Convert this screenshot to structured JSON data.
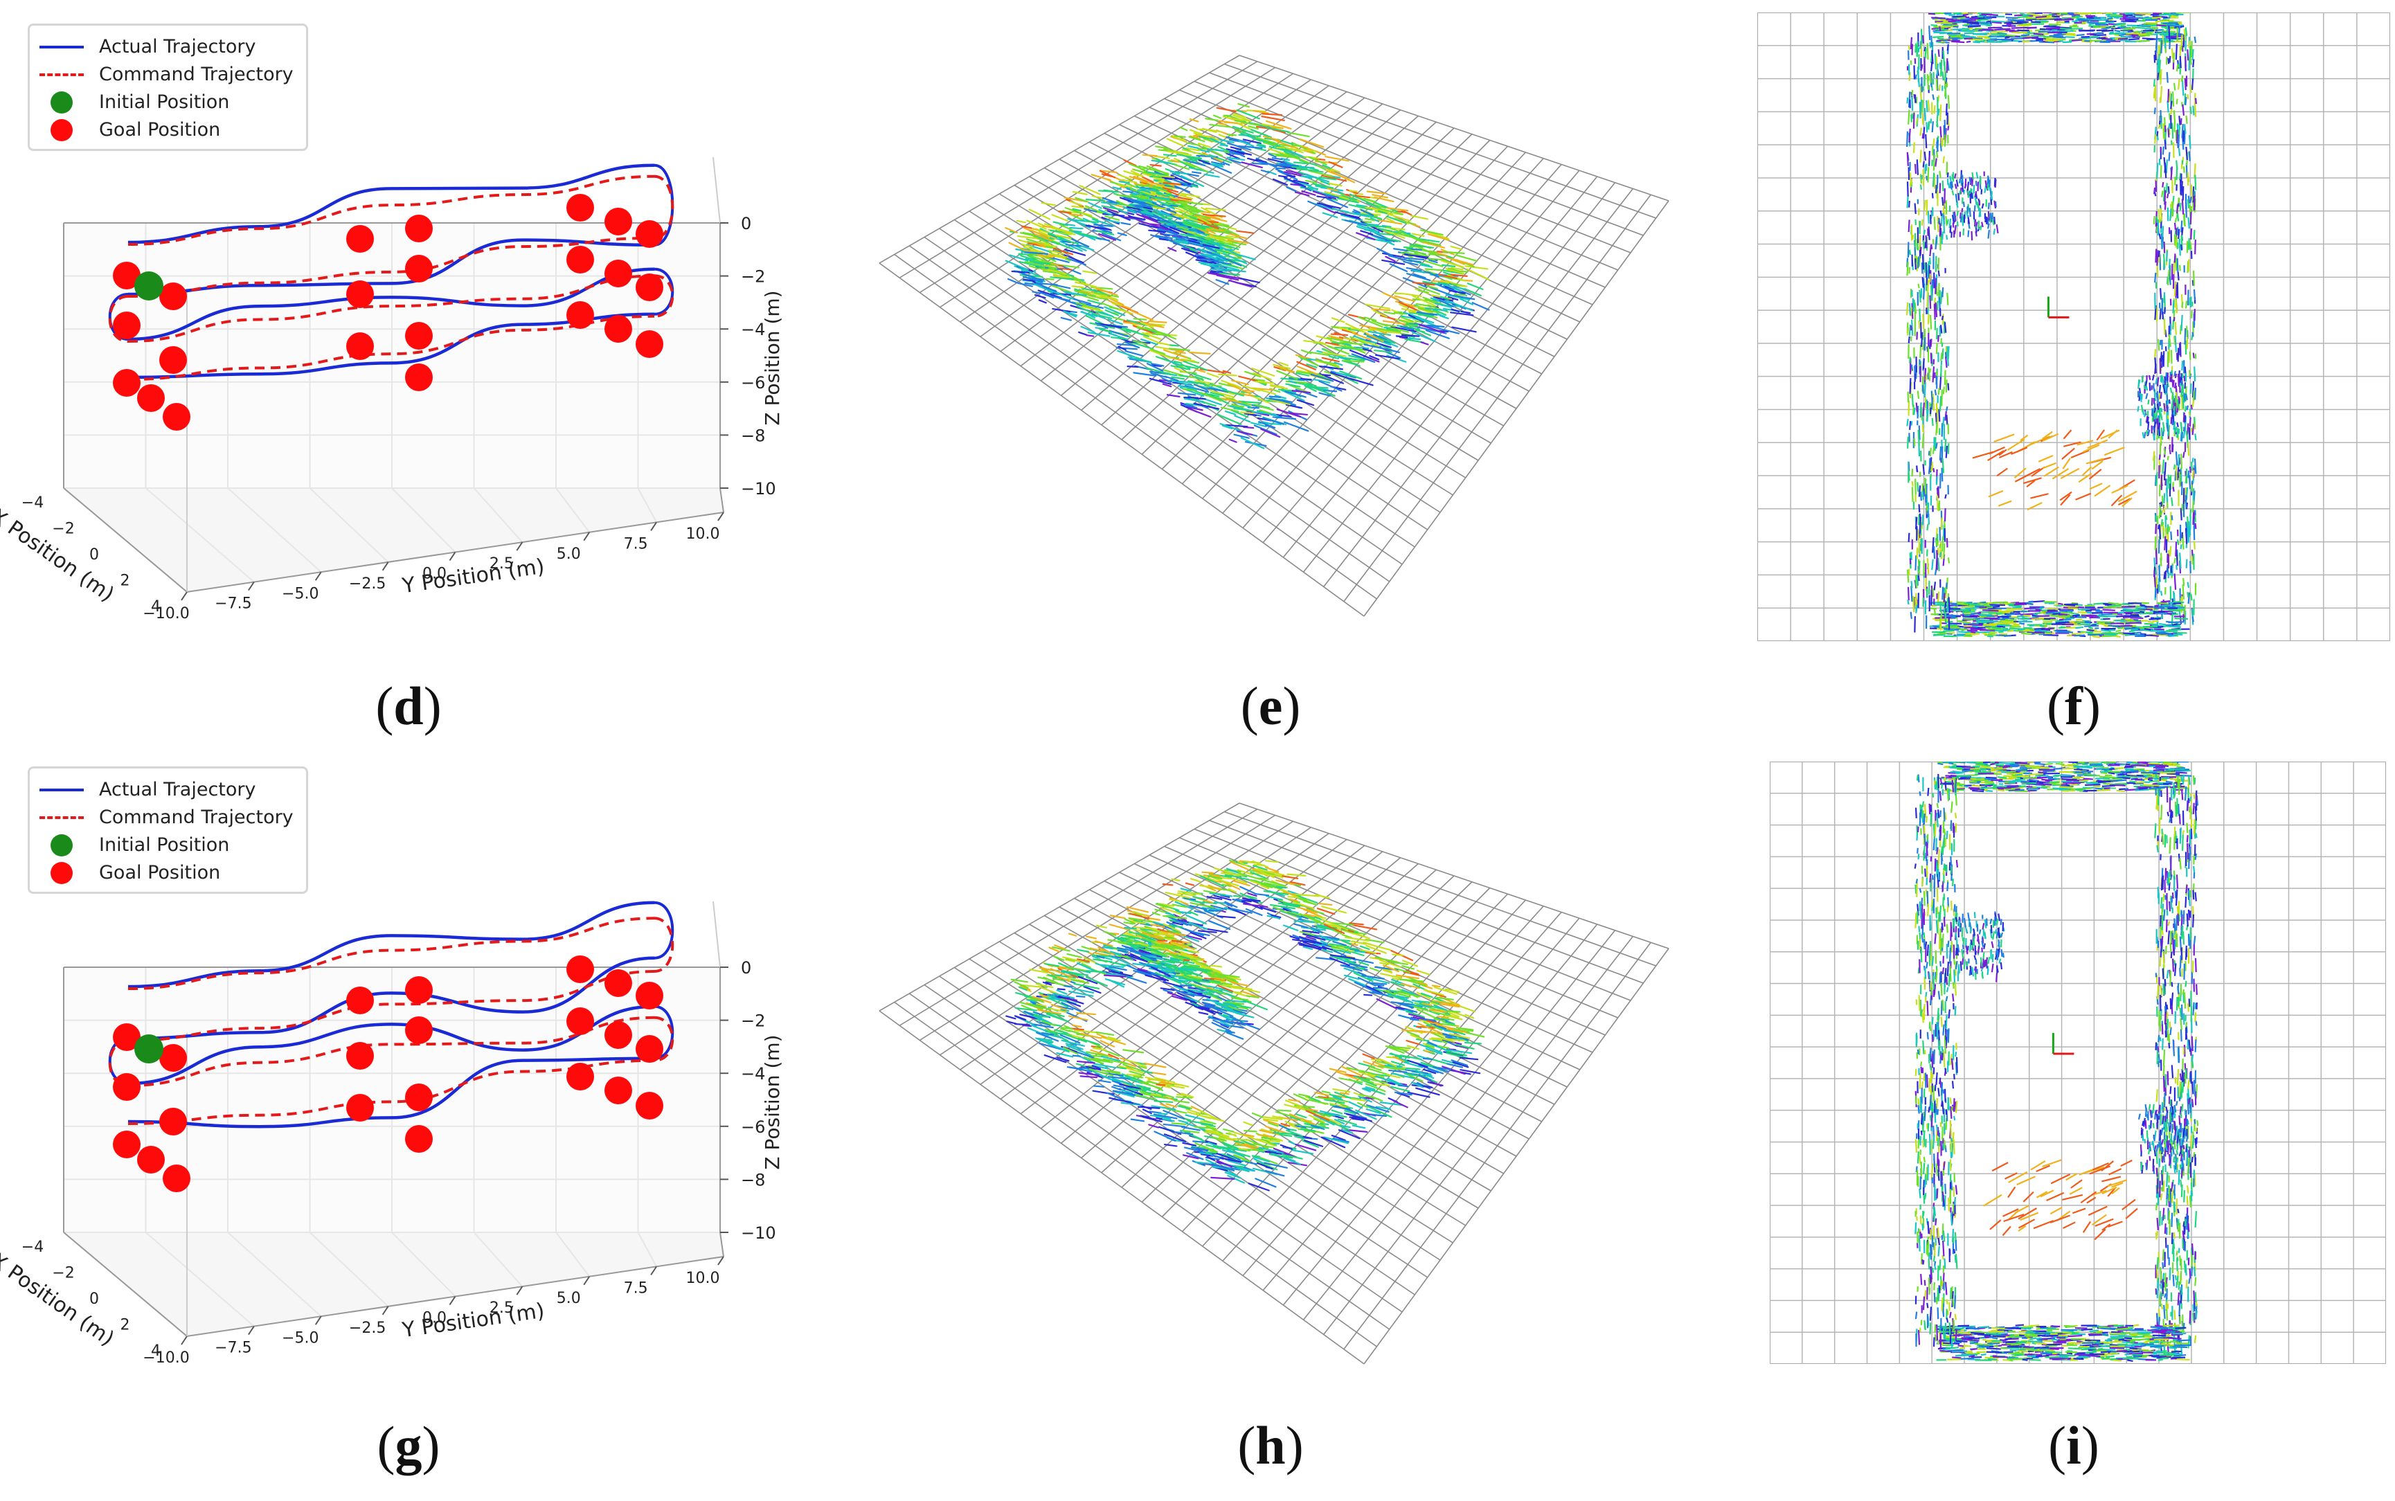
{
  "figure_labels": [
    "d",
    "e",
    "f",
    "g",
    "h",
    "i"
  ],
  "colors": {
    "actual": "#1a2bd6",
    "command": "#e41a1a",
    "initial": "#1a8a1a",
    "goal": "#ff0a0a",
    "grid": "#9a9a9a",
    "cloud_palette": [
      "#7a1fd6",
      "#2a2ad8",
      "#1f7fe0",
      "#19c6c6",
      "#22d67a",
      "#6fe02a",
      "#c8e01a",
      "#f0b21a",
      "#f05a1a"
    ]
  },
  "chart_data": [
    {
      "id": "d",
      "type": "line",
      "legend": [
        {
          "name": "Actual Trajectory",
          "style": "solid-line"
        },
        {
          "name": "Command Trajectory",
          "style": "dashed-line"
        },
        {
          "name": "Initial Position",
          "style": "green-dot"
        },
        {
          "name": "Goal Position",
          "style": "red-dot"
        }
      ],
      "xlabel": "X Position (m)",
      "ylabel": "Y Position (m)",
      "zlabel": "Z Position (m)",
      "x_ticks": [
        "−4",
        "−2",
        "0",
        "2",
        "4"
      ],
      "y_ticks": [
        "−10.0",
        "−7.5",
        "−5.0",
        "−2.5",
        "0.0",
        "2.5",
        "5.0",
        "7.5",
        "10.0"
      ],
      "z_ticks": [
        "0",
        "−2",
        "−4",
        "−6",
        "−8",
        "−10"
      ],
      "xlim": [
        -4,
        4
      ],
      "ylim": [
        -10,
        10
      ],
      "zlim": [
        -10,
        0
      ],
      "series": [
        {
          "name": "Actual Trajectory",
          "values": [
            [
              -10,
              0
            ],
            [
              -5,
              0
            ],
            [
              0,
              0
            ],
            [
              5,
              0
            ],
            [
              10,
              0
            ],
            [
              10,
              -2
            ],
            [
              -10,
              -2
            ],
            [
              -10,
              -4
            ],
            [
              10,
              -4
            ],
            [
              10,
              -6
            ],
            [
              -10,
              -6
            ]
          ]
        },
        {
          "name": "Command Trajectory",
          "values": [
            [
              -10,
              0
            ],
            [
              -5,
              0
            ],
            [
              0,
              0
            ],
            [
              5,
              0
            ],
            [
              10,
              0
            ],
            [
              10,
              -2
            ],
            [
              -10,
              -2
            ],
            [
              -10,
              -4
            ],
            [
              10,
              -4
            ],
            [
              10,
              -6
            ],
            [
              -10,
              -6
            ]
          ]
        }
      ],
      "goal_count": 24,
      "initial_position": [
        -9,
        -1.5
      ]
    },
    {
      "id": "e",
      "type": "scatter"
    },
    {
      "id": "f",
      "type": "scatter"
    },
    {
      "id": "g",
      "type": "line",
      "legend": [
        {
          "name": "Actual Trajectory",
          "style": "solid-line"
        },
        {
          "name": "Command Trajectory",
          "style": "dashed-line"
        },
        {
          "name": "Initial Position",
          "style": "green-dot"
        },
        {
          "name": "Goal Position",
          "style": "red-dot"
        }
      ],
      "xlabel": "X Position (m)",
      "ylabel": "Y Position (m)",
      "zlabel": "Z Position (m)",
      "x_ticks": [
        "−4",
        "−2",
        "0",
        "2",
        "4"
      ],
      "y_ticks": [
        "−10.0",
        "−7.5",
        "−5.0",
        "−2.5",
        "0.0",
        "2.5",
        "5.0",
        "7.5",
        "10.0"
      ],
      "z_ticks": [
        "0",
        "−2",
        "−4",
        "−6",
        "−8",
        "−10"
      ],
      "xlim": [
        -4,
        4
      ],
      "ylim": [
        -10,
        10
      ],
      "zlim": [
        -10,
        0
      ],
      "series": [
        {
          "name": "Actual Trajectory",
          "values": [
            [
              -10,
              0
            ],
            [
              -5,
              0
            ],
            [
              0,
              0
            ],
            [
              5,
              0
            ],
            [
              10,
              0
            ],
            [
              10,
              -2
            ],
            [
              -10,
              -2
            ],
            [
              -10,
              -4
            ],
            [
              10,
              -4
            ],
            [
              10,
              -6
            ],
            [
              -10,
              -6
            ]
          ]
        },
        {
          "name": "Command Trajectory",
          "values": [
            [
              -10,
              0
            ],
            [
              -5,
              0
            ],
            [
              0,
              0
            ],
            [
              5,
              0
            ],
            [
              10,
              0
            ],
            [
              10,
              -2
            ],
            [
              -10,
              -2
            ],
            [
              -10,
              -4
            ],
            [
              10,
              -4
            ],
            [
              10,
              -6
            ],
            [
              -10,
              -6
            ]
          ]
        }
      ],
      "goal_count": 24,
      "initial_position": [
        -9,
        -1.5
      ]
    },
    {
      "id": "h",
      "type": "scatter"
    },
    {
      "id": "i",
      "type": "scatter"
    }
  ]
}
